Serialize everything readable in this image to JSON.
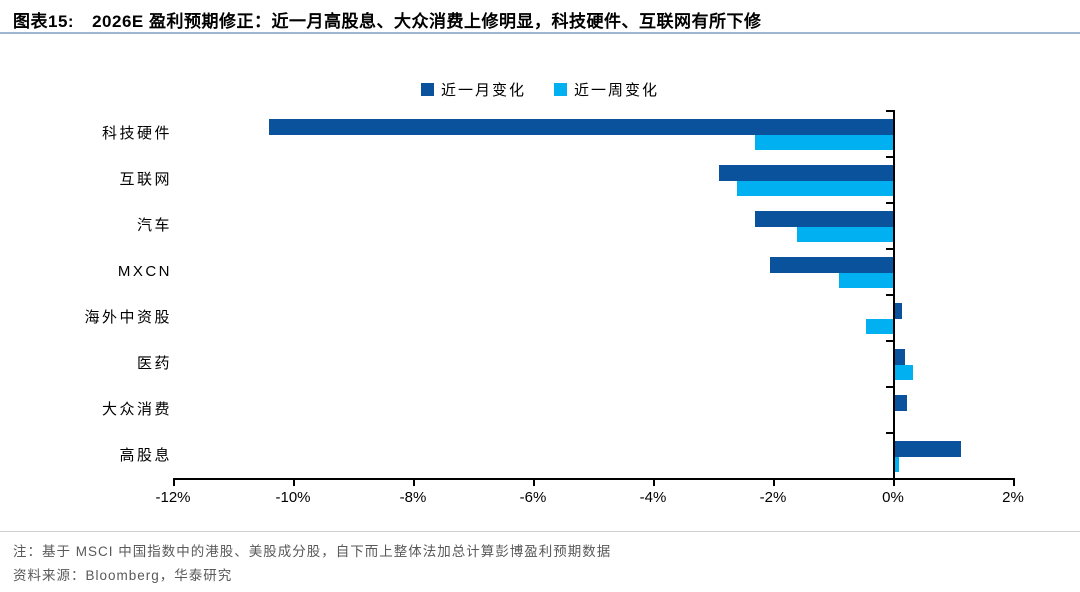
{
  "header": {
    "label": "图表15:",
    "title": "2026E 盈利预期修正：近一月高股息、大众消费上修明显，科技硬件、互联网有所下修"
  },
  "chart_data": {
    "type": "bar",
    "orientation": "horizontal",
    "title": "2026E 盈利预期修正",
    "categories": [
      "科技硬件",
      "互联网",
      "汽车",
      "MXCN",
      "海外中资股",
      "医药",
      "大众消费",
      "高股息"
    ],
    "series": [
      {
        "name": "近一月变化",
        "color": "#0b529c",
        "values": [
          -10.4,
          -2.9,
          -2.3,
          -2.05,
          0.12,
          0.17,
          0.2,
          1.1
        ]
      },
      {
        "name": "近一周变化",
        "color": "#00b0f0",
        "values": [
          -2.3,
          -2.6,
          -1.6,
          -0.9,
          -0.45,
          0.3,
          0.0,
          0.07
        ]
      }
    ],
    "x_axis": {
      "unit": "%",
      "min": -12,
      "max": 2,
      "tick_values": [
        -12,
        -10,
        -8,
        -6,
        -4,
        -2,
        0,
        2
      ],
      "tick_labels": [
        "-12%",
        "-10%",
        "-8%",
        "-6%",
        "-4%",
        "-2%",
        "0%",
        "2%"
      ]
    },
    "legend_position": "top-center",
    "grid": false,
    "zero_baseline": true
  },
  "footer": {
    "note": "注：基于 MSCI 中国指数中的港股、美股成分股，自下而上整体法加总计算彭博盈利预期数据",
    "source": "资料来源：Bloomberg，华泰研究"
  },
  "colors": {
    "bar_month": "#0b529c",
    "bar_week": "#00b0f0",
    "axis": "#000000",
    "title_rule": "#9db7d2",
    "note_text": "#595959",
    "footnote_divider": "#d2d2d2"
  }
}
